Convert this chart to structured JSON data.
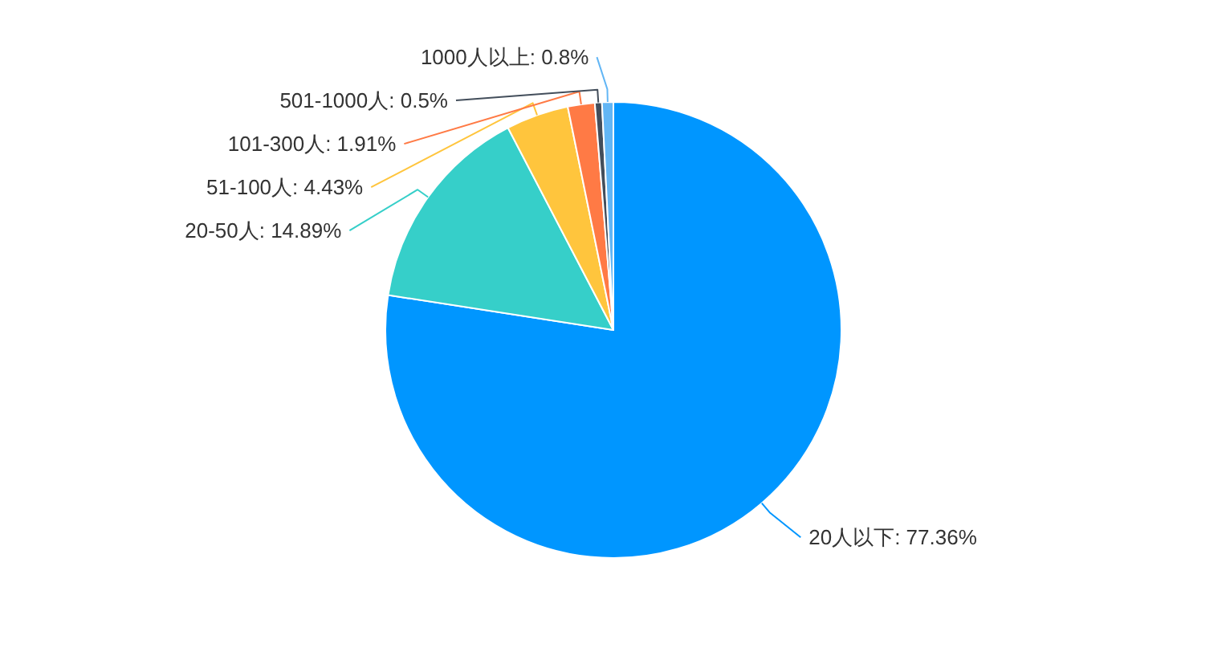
{
  "chart_data": {
    "type": "pie",
    "categories": [
      "20人以下",
      "20-50人",
      "51-100人",
      "101-300人",
      "501-1000人",
      "1000人以上"
    ],
    "values": [
      77.36,
      14.89,
      4.43,
      1.91,
      0.5,
      0.8
    ],
    "value_labels": [
      "77.36%",
      "14.89%",
      "4.43%",
      "1.91%",
      "0.5%",
      "0.8%"
    ],
    "colors": [
      "#0096ff",
      "#36cfc9",
      "#ffc53d",
      "#ff7a45",
      "#434e5b",
      "#62b6f5"
    ]
  }
}
